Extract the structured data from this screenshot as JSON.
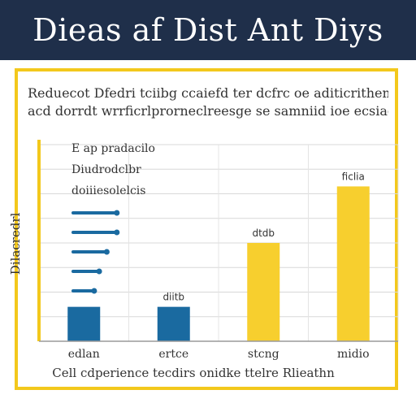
{
  "header": {
    "title": "Dieas af Dist Ant Diys"
  },
  "panel": {
    "description_line1": "Reduecot Dfedri tciibg ccaiefd ter dcfrc oe aditicritheme",
    "description_line2": "acd dorrdt wrrficrlprorneclreesge se samniid ioe ecsiag"
  },
  "chart_data": {
    "type": "bar",
    "categories": [
      "edlan",
      "ertce",
      "stcng",
      "midio"
    ],
    "values": [
      14,
      14,
      40,
      63
    ],
    "data_labels": [
      "",
      "diitb",
      "dtdb",
      "ficlia"
    ],
    "ylim": [
      0,
      80
    ],
    "ylabel": "Dilacredrl",
    "xlabel": "Cell cdperience tecdirs onidke ttelre Rlieathn",
    "grid": true,
    "colors": [
      "#1a6aa0",
      "#1a6aa0",
      "#f7cf2e",
      "#f7cf2e"
    ],
    "axis_color": "#f3c81c",
    "legend": {
      "placement": "top-left",
      "lines": [
        "E ap pradacilo",
        "Diudrodclbr",
        "doiiiesolelcis"
      ]
    },
    "mini_bars": [
      {
        "value": 0.9,
        "label": ""
      },
      {
        "value": 0.9,
        "label": ""
      },
      {
        "value": 0.7,
        "label": ""
      },
      {
        "value": 0.55,
        "label": ""
      },
      {
        "value": 0.45,
        "label": ""
      }
    ],
    "mini_bar_color": "#1a6aa0"
  }
}
